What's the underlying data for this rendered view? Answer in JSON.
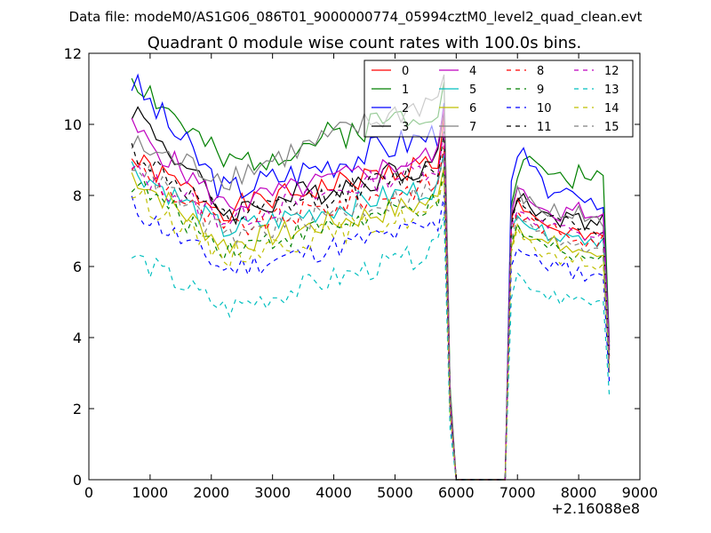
{
  "chart_data": {
    "type": "line",
    "suptitle": "Data file: modeM0/AS1G06_086T01_9000000774_05994cztM0_level2_quad_clean.evt",
    "title": "Quadrant 0 module wise count rates with 100.0s bins.",
    "xlabel": "",
    "ylabel": "",
    "x_offset_label": "+2.16088e8",
    "xlim": [
      0,
      9000
    ],
    "ylim": [
      0,
      12
    ],
    "x_ticks": [
      0,
      1000,
      2000,
      3000,
      4000,
      5000,
      6000,
      7000,
      8000,
      9000
    ],
    "y_ticks": [
      0,
      2,
      4,
      6,
      8,
      10,
      12
    ],
    "x_tick_labels": [
      "0",
      "1000",
      "2000",
      "3000",
      "4000",
      "5000",
      "6000",
      "7000",
      "8000",
      "9000"
    ],
    "y_tick_labels": [
      "0",
      "2",
      "4",
      "6",
      "8",
      "10",
      "12"
    ],
    "grid": false,
    "legend_position": "top-right",
    "legend_columns": 4,
    "x_segments": [
      {
        "start": 700,
        "end": 5800,
        "step": 100
      },
      {
        "gap": [
          5800,
          5900,
          6000,
          6100,
          6200,
          6300,
          6400,
          6500,
          6600,
          6700,
          6800
        ]
      },
      {
        "start": 6900,
        "end": 8500,
        "step": 100
      }
    ],
    "series": [
      {
        "name": "0",
        "color": "#ff0000",
        "dash": "solid",
        "start": 9.0,
        "mid": 7.6,
        "end5800": 9.0,
        "peak": 10.2,
        "second": [
          7.2,
          7.8,
          7.5,
          7.4,
          7.3,
          7.2,
          7.0,
          7.1,
          6.9,
          7.0,
          7.2,
          7.0,
          6.8,
          6.9,
          7.0,
          6.8,
          3.3
        ],
        "noise": 0.35,
        "seed": 1
      },
      {
        "name": "1",
        "color": "#008000",
        "dash": "solid",
        "start": 11.4,
        "mid": 8.8,
        "end5800": 10.6,
        "peak": 11.2,
        "second": [
          7.8,
          8.6,
          8.9,
          9.0,
          8.8,
          8.9,
          8.6,
          8.7,
          8.5,
          8.6,
          8.4,
          8.7,
          8.3,
          8.4,
          8.6,
          8.6,
          4.0
        ],
        "noise": 0.45,
        "seed": 2
      },
      {
        "name": "2",
        "color": "#0000ff",
        "dash": "solid",
        "start": 11.2,
        "mid": 8.1,
        "end5800": 9.8,
        "peak": 10.6,
        "second": [
          8.2,
          9.0,
          9.2,
          8.8,
          8.6,
          8.3,
          8.1,
          8.2,
          7.9,
          8.0,
          7.9,
          8.1,
          7.8,
          7.9,
          7.8,
          7.8,
          3.8
        ],
        "noise": 0.45,
        "seed": 3
      },
      {
        "name": "3",
        "color": "#000000",
        "dash": "solid",
        "start": 10.5,
        "mid": 7.5,
        "end5800": 9.0,
        "peak": 10.4,
        "second": [
          7.4,
          8.0,
          7.9,
          7.7,
          7.6,
          7.5,
          7.4,
          7.5,
          7.3,
          7.4,
          7.3,
          7.5,
          7.2,
          7.3,
          7.2,
          7.3,
          3.6
        ],
        "noise": 0.4,
        "seed": 4
      },
      {
        "name": "4",
        "color": "#bf00bf",
        "dash": "solid",
        "start": 9.9,
        "mid": 7.7,
        "end5800": 9.2,
        "peak": 10.5,
        "second": [
          7.6,
          8.2,
          8.0,
          7.9,
          7.8,
          7.7,
          7.6,
          7.5,
          7.4,
          7.6,
          7.5,
          7.7,
          7.3,
          7.4,
          7.3,
          7.4,
          3.6
        ],
        "noise": 0.35,
        "seed": 5
      },
      {
        "name": "5",
        "color": "#00bfbf",
        "dash": "solid",
        "start": 8.8,
        "mid": 7.0,
        "end5800": 8.3,
        "peak": 9.2,
        "second": [
          7.0,
          7.6,
          7.4,
          7.2,
          7.1,
          7.0,
          6.9,
          7.0,
          6.8,
          6.9,
          6.8,
          7.0,
          6.7,
          6.8,
          6.7,
          6.8,
          3.2
        ],
        "noise": 0.35,
        "seed": 6
      },
      {
        "name": "6",
        "color": "#bfbf00",
        "dash": "solid",
        "start": 8.6,
        "mid": 6.6,
        "end5800": 7.9,
        "peak": 8.8,
        "second": [
          6.6,
          7.2,
          7.0,
          6.9,
          6.8,
          6.7,
          6.6,
          6.7,
          6.5,
          6.6,
          6.4,
          6.5,
          6.3,
          6.4,
          6.3,
          6.4,
          3.1
        ],
        "noise": 0.35,
        "seed": 7
      },
      {
        "name": "7",
        "color": "#808080",
        "dash": "solid",
        "start": 9.4,
        "mid": 8.5,
        "end5800": 10.8,
        "peak": 11.4,
        "second": [
          7.5,
          8.1,
          7.9,
          7.8,
          7.7,
          7.6,
          7.5,
          7.6,
          7.4,
          7.5,
          7.4,
          7.6,
          7.3,
          7.4,
          7.3,
          7.3,
          3.5
        ],
        "noise": 0.4,
        "seed": 8
      },
      {
        "name": "8",
        "color": "#ff0000",
        "dash": "dashed",
        "start": 8.9,
        "mid": 7.0,
        "end5800": 8.4,
        "peak": 9.4,
        "second": [
          7.0,
          7.6,
          7.4,
          7.3,
          7.2,
          7.1,
          7.0,
          7.1,
          6.9,
          7.0,
          6.8,
          6.9,
          6.7,
          6.8,
          6.7,
          6.8,
          3.3
        ],
        "noise": 0.35,
        "seed": 9
      },
      {
        "name": "9",
        "color": "#008000",
        "dash": "dashed",
        "start": 8.4,
        "mid": 6.5,
        "end5800": 7.8,
        "peak": 8.8,
        "second": [
          6.5,
          7.1,
          6.9,
          6.8,
          6.7,
          6.6,
          6.5,
          6.6,
          6.4,
          6.5,
          6.3,
          6.4,
          6.2,
          6.3,
          6.2,
          6.3,
          3.1
        ],
        "noise": 0.35,
        "seed": 10
      },
      {
        "name": "10",
        "color": "#0000ff",
        "dash": "dashed",
        "start": 7.7,
        "mid": 5.9,
        "end5800": 7.2,
        "peak": 8.0,
        "second": [
          6.0,
          6.6,
          6.4,
          6.3,
          6.2,
          6.1,
          6.0,
          6.1,
          5.9,
          6.0,
          5.8,
          5.9,
          5.7,
          5.8,
          5.7,
          5.8,
          2.9
        ],
        "noise": 0.35,
        "seed": 11
      },
      {
        "name": "11",
        "color": "#000000",
        "dash": "dashed",
        "start": 9.3,
        "mid": 7.3,
        "end5800": 8.8,
        "peak": 9.8,
        "second": [
          7.3,
          7.9,
          7.7,
          7.6,
          7.5,
          7.4,
          7.3,
          7.4,
          7.2,
          7.3,
          7.1,
          7.2,
          7.0,
          7.1,
          7.0,
          7.1,
          3.4
        ],
        "noise": 0.35,
        "seed": 12
      },
      {
        "name": "12",
        "color": "#bf00bf",
        "dash": "dashed",
        "start": 8.7,
        "mid": 7.3,
        "end5800": 8.9,
        "peak": 9.9,
        "second": [
          7.1,
          7.7,
          7.5,
          7.4,
          7.3,
          7.2,
          7.1,
          7.2,
          7.0,
          7.1,
          6.9,
          7.0,
          6.8,
          6.9,
          6.8,
          6.9,
          3.3
        ],
        "noise": 0.35,
        "seed": 13
      },
      {
        "name": "13",
        "color": "#00bfbf",
        "dash": "dashed",
        "start": 6.3,
        "mid": 4.8,
        "end5800": 6.5,
        "peak": 7.4,
        "second": [
          5.2,
          5.8,
          5.6,
          5.5,
          5.4,
          5.3,
          5.2,
          5.3,
          5.1,
          5.2,
          5.0,
          5.1,
          4.9,
          5.0,
          4.9,
          5.0,
          2.3
        ],
        "noise": 0.35,
        "seed": 14
      },
      {
        "name": "14",
        "color": "#bfbf00",
        "dash": "dashed",
        "start": 8.1,
        "mid": 6.3,
        "end5800": 7.6,
        "peak": 8.5,
        "second": [
          6.3,
          6.9,
          6.7,
          6.6,
          6.5,
          6.4,
          6.3,
          6.4,
          6.2,
          6.3,
          6.1,
          6.2,
          6.0,
          6.1,
          6.0,
          6.1,
          3.0
        ],
        "noise": 0.35,
        "seed": 15
      },
      {
        "name": "15",
        "color": "#808080",
        "dash": "dashed",
        "start": 9.0,
        "mid": 6.8,
        "end5800": 8.2,
        "peak": 9.1,
        "second": [
          6.8,
          7.4,
          7.2,
          7.1,
          7.0,
          6.9,
          6.8,
          6.9,
          6.7,
          6.8,
          6.6,
          6.7,
          6.5,
          6.6,
          6.5,
          6.6,
          3.2
        ],
        "noise": 0.35,
        "seed": 16
      }
    ]
  }
}
